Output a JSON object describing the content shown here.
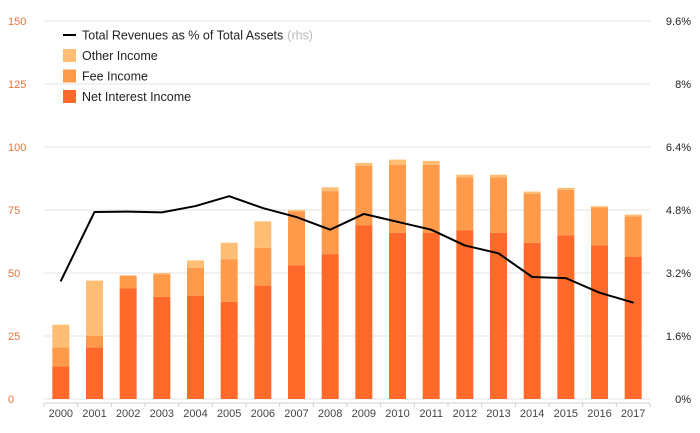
{
  "chart_data": {
    "type": "bar",
    "stacked": true,
    "categories": [
      "2000",
      "2001",
      "2002",
      "2003",
      "2004",
      "2005",
      "2006",
      "2007",
      "2008",
      "2009",
      "2010",
      "2011",
      "2012",
      "2013",
      "2014",
      "2015",
      "2016",
      "2017"
    ],
    "series": [
      {
        "name": "Net Interest Income",
        "color": "#ff6a2b",
        "axis": "left",
        "values": [
          13,
          20.5,
          44,
          40.5,
          41,
          38.5,
          45,
          53,
          57.5,
          69,
          66,
          66,
          67,
          66,
          62,
          65,
          61,
          56.5
        ]
      },
      {
        "name": "Fee Income",
        "color": "#ff9a4a",
        "axis": "left",
        "values": [
          7.5,
          4.5,
          5,
          9,
          11,
          17,
          15,
          21.5,
          25,
          23.5,
          27,
          27,
          21,
          22,
          19.5,
          18,
          15,
          16
        ]
      },
      {
        "name": "Other Income",
        "color": "#ffbe74",
        "axis": "left",
        "values": [
          9,
          22,
          0,
          0.5,
          3,
          6.5,
          10.5,
          0.5,
          1.5,
          1.2,
          2,
          1.5,
          1,
          1,
          0.8,
          0.8,
          0.5,
          0.7
        ]
      },
      {
        "name": "Total Revenues as % of Total Assets",
        "note": "(rhs)",
        "type": "line",
        "color": "#000000",
        "axis": "right",
        "values": [
          3.0,
          4.75,
          4.76,
          4.74,
          4.9,
          5.15,
          4.85,
          4.62,
          4.3,
          4.7,
          4.5,
          4.3,
          3.9,
          3.7,
          3.1,
          3.07,
          2.7,
          2.45
        ]
      }
    ],
    "y_left": {
      "ticks": [
        "150",
        "125",
        "100",
        "75",
        "50",
        "25",
        "0"
      ],
      "ylim": [
        0,
        150
      ],
      "color": "#e8743b"
    },
    "y_right": {
      "ticks": [
        "9.6%",
        "8%",
        "6.4%",
        "4.8%",
        "3.2%",
        "1.6%",
        "0%"
      ],
      "ylim": [
        0,
        9.6
      ],
      "color": "#222222"
    },
    "grid": "horizontal",
    "legend_position": "top-left",
    "title": "",
    "xlabel": "",
    "ylabel": ""
  }
}
